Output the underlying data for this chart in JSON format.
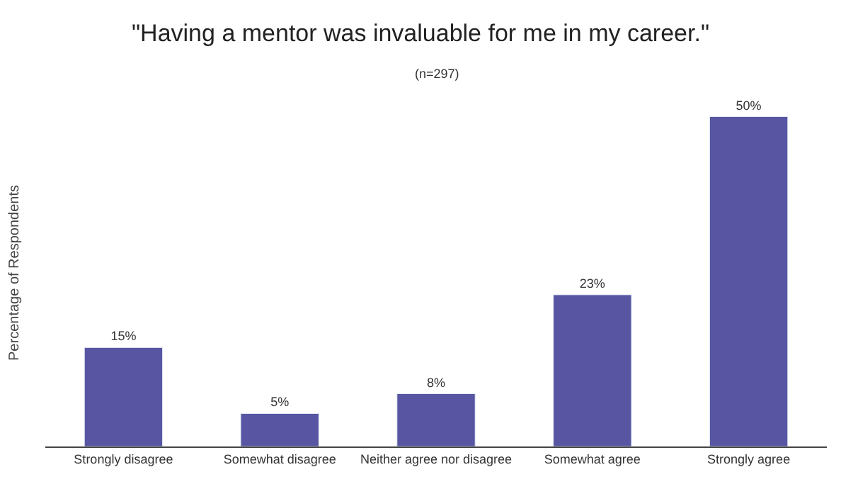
{
  "chart_data": {
    "type": "bar",
    "title": "\"Having a mentor was invaluable for me in my career.\"",
    "subtitle": "(n=297)",
    "ylabel": "Percentage of Respondents",
    "categories": [
      "Strongly disagree",
      "Somewhat disagree",
      "Neither agree nor disagree",
      "Somewhat agree",
      "Strongly agree"
    ],
    "values": [
      15,
      5,
      8,
      23,
      50
    ],
    "value_labels": [
      "15%",
      "5%",
      "8%",
      "23%",
      "50%"
    ],
    "color": "#5856a2",
    "tick_labels": "x"
  }
}
